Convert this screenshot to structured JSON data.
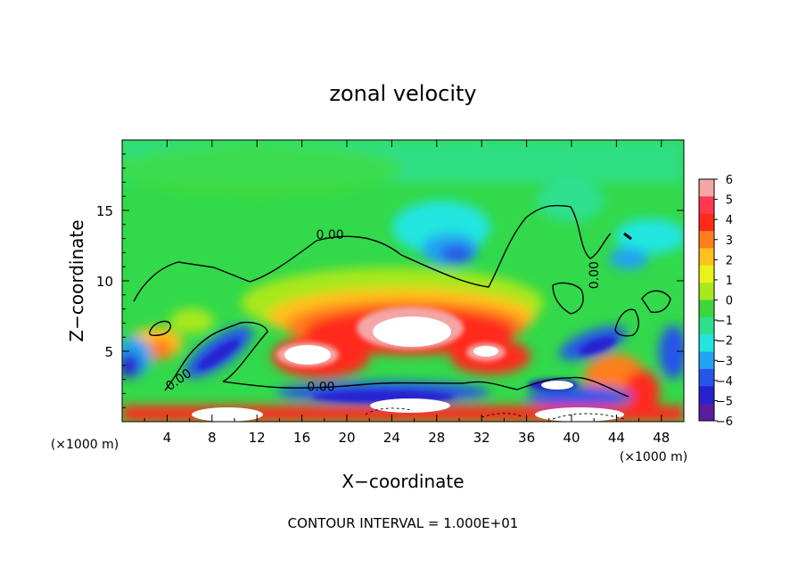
{
  "chart_data": {
    "type": "heatmap",
    "title": "zonal velocity",
    "xlabel": "X−coordinate",
    "ylabel": "Z−coordinate",
    "xunit_left": "(×1000 m)",
    "xunit_right": "(×1000 m)",
    "footer": "CONTOUR INTERVAL = 1.000E+01",
    "xlim": [
      0,
      50
    ],
    "ylim": [
      0,
      20
    ],
    "xticks": [
      4,
      8,
      12,
      16,
      20,
      24,
      28,
      32,
      36,
      40,
      44,
      48
    ],
    "xtick_labels": [
      "4",
      "8",
      "12",
      "16",
      "20",
      "24",
      "28",
      "32",
      "36",
      "40",
      "44",
      "48"
    ],
    "yticks": [
      5,
      10,
      15
    ],
    "ytick_labels": [
      "5",
      "10",
      "15"
    ],
    "colorbar": {
      "min": -6,
      "max": 6,
      "ticks": [
        "6",
        "5",
        "4",
        "3",
        "2",
        "1",
        "0",
        "−1",
        "−2",
        "−3",
        "−4",
        "−5",
        "−6"
      ],
      "colors": [
        "#f4a6a6",
        "#fd3a4d",
        "#ff2a1a",
        "#ff7e1c",
        "#ffc11c",
        "#e9f21c",
        "#a8e81c",
        "#3ed63c",
        "#2edf8e",
        "#20e5e0",
        "#23a3f2",
        "#2655e8",
        "#2622d0",
        "#5a1d9e"
      ]
    },
    "contours": [
      {
        "label": "0.00",
        "label_x": 17.7,
        "label_y": 2.5
      },
      {
        "label": "0.00",
        "label_x": 18.5,
        "label_y": 13.3
      },
      {
        "label": "0.00",
        "label_x": 42.0,
        "label_y": 10.4
      },
      {
        "label": "0.00",
        "label_x": 5.0,
        "label_y": 3.0
      }
    ],
    "grid": false,
    "legend": "right colorbar"
  }
}
